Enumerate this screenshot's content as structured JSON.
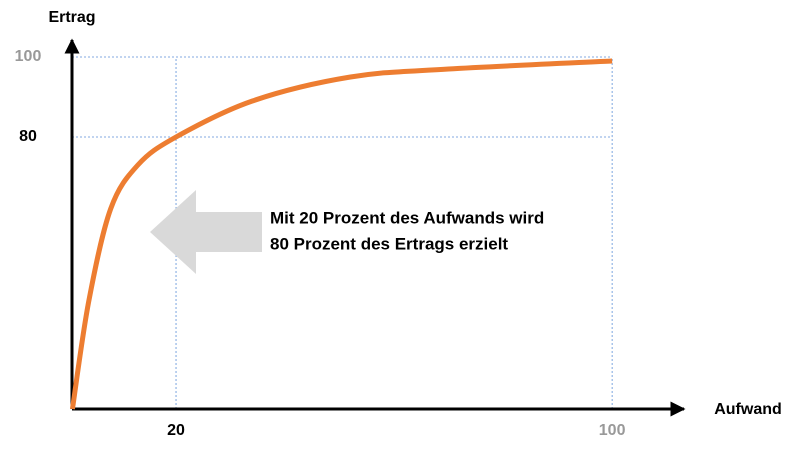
{
  "chart_data": {
    "type": "line",
    "x_label": "Aufwand",
    "y_label": "Ertrag",
    "annotation": [
      "Mit 20 Prozent des Aufwands wird",
      "80 Prozent des Ertrags erzielt"
    ],
    "x": [
      1,
      4,
      8,
      13,
      20,
      34,
      52,
      70,
      100
    ],
    "series": [
      {
        "color": "#ed7d31",
        "values": [
          12,
          39,
          62,
          73,
          80,
          89,
          95,
          97,
          99
        ]
      }
    ],
    "xlim": [
      0,
      113
    ],
    "ylim": [
      12,
      104
    ],
    "xticks": [
      20,
      100
    ],
    "yticks": [
      80,
      100
    ],
    "xtick_colors": [
      "#000000",
      "#999999"
    ],
    "ytick_colors": [
      "#000000",
      "#999999"
    ],
    "grid": true,
    "grid_color": "#5b8fd6"
  }
}
